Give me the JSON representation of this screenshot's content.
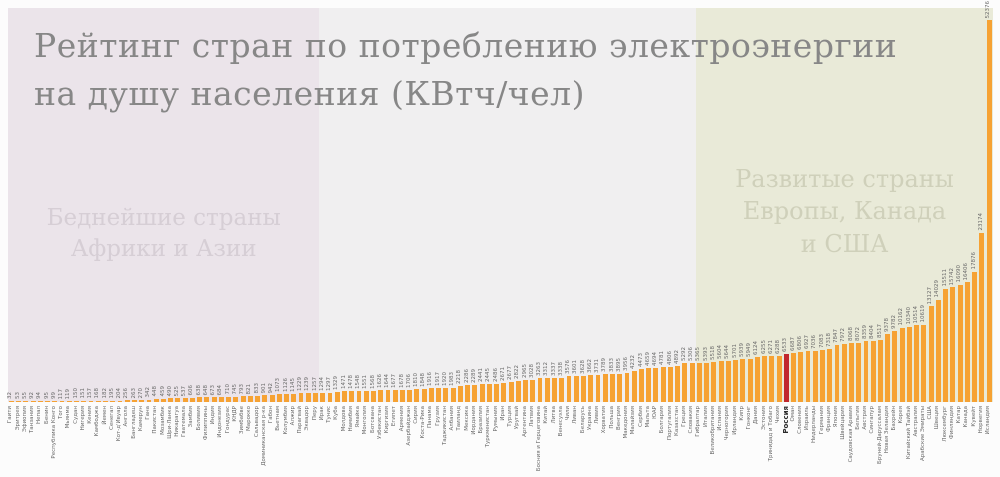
{
  "title": {
    "line1": "Рейтинг стран по потреблению электроэнергии",
    "line2": "на душу населения (КВтч/чел)"
  },
  "regions": [
    {
      "id": "poorest-africa-asia",
      "label_lines": [
        "Беднейшие страны",
        "Африки и Азии"
      ],
      "start_index": 0,
      "end_index": 42,
      "bg_color": "#ebe4ea",
      "label_color": "#d6ced5"
    },
    {
      "id": "developed-europe-canada-usa",
      "label_lines": [
        "Развитые страны",
        "Европы, Канада",
        "и США"
      ],
      "start_index": 95,
      "end_index": 135,
      "bg_color": "#e9ead8",
      "label_color": "#cfd0ba"
    }
  ],
  "highlight": {
    "country": "Россия",
    "value": 6533
  },
  "colors": {
    "bar": "#f6a233",
    "bar_highlight": "#c1272d",
    "value_label": "#6a6a6a",
    "name_label": "#6a6a6a",
    "panel_bg": "#f0eff0",
    "page_bg": "#fcfcfc",
    "title_color": "#878787"
  },
  "chart_data": {
    "type": "bar",
    "title": "Рейтинг стран по потреблению электроэнергии на душу населения (КВтч/чел)",
    "xlabel": "",
    "ylabel": "КВтч/чел",
    "ylim": [
      0,
      52376
    ],
    "sort": "ascending",
    "grid": false,
    "legend": "none",
    "categories": [
      "Гаити",
      "Эритрея",
      "Эфиопия",
      "Танзания",
      "Непал",
      "Бенин",
      "Республика Конго",
      "Того",
      "Мьянма",
      "Судан",
      "Нигерия",
      "Кения",
      "Камбоджа",
      "Йемен",
      "Сенегал",
      "Кот-д'Ивуар",
      "Ангола",
      "Бангладеш",
      "Камерун",
      "Гана",
      "Пакистан",
      "Мозамбик",
      "Шри-Ланка",
      "Никарагуа",
      "Гватемала",
      "Замбия",
      "Боливия",
      "Филиппины",
      "Индия",
      "Индонезия",
      "Гондурас",
      "КНДР",
      "Зимбабве",
      "Марокко",
      "Сальвадор",
      "Доминиканская р-ка",
      "Габон",
      "Вьетнам",
      "Колумбия",
      "Алжир",
      "Парагвай",
      "Эквадор",
      "Перу",
      "Ирак",
      "Тунис",
      "Куба",
      "Молдова",
      "Намибия",
      "Ямайка",
      "Монголия",
      "Ботсвана",
      "Узбекистан",
      "Киргизия",
      "Египет",
      "Армения",
      "Азербайджан",
      "Сирия",
      "Коста-Рика",
      "Панама",
      "Грузия",
      "Таджикистан",
      "Албания",
      "Таиланд",
      "Мексика",
      "Иордания",
      "Бразилия",
      "Туркменистан",
      "Румыния",
      "Иран",
      "Турция",
      "Уругвай",
      "Аргентина",
      "Латвия",
      "Босния и Герцеговина",
      "Китай",
      "Литва",
      "Венесуэла",
      "Чили",
      "Ливан",
      "Беларусь",
      "Украина",
      "Ливия",
      "Хорватия",
      "Польша",
      "Венгрия",
      "Македония",
      "Малайзия",
      "Сербия",
      "Мальта",
      "ЮАР",
      "Болгария",
      "Португалия",
      "Казахстан",
      "Греция",
      "Словакия",
      "Гибралтар",
      "Италия",
      "Великобритания",
      "Испания",
      "Черногория",
      "Ирландия",
      "Кипр",
      "Гонконг",
      "Дания",
      "Эстония",
      "Тринидад и Тобаго",
      "Чехия",
      "Россия",
      "Оман",
      "Словения",
      "Израиль",
      "Нидерланды",
      "Германия",
      "Франция",
      "Япония",
      "Швейцария",
      "Саудовская Аравия",
      "Бельгия",
      "Австрия",
      "Сингапур",
      "Бруней-Даруссалам",
      "Новая Зеландия",
      "Бахрейн",
      "Корея",
      "Китайский Тайбэй",
      "Австралия",
      "Арабские Эмираты",
      "США",
      "Швеция",
      "Люксембург",
      "Финляндия",
      "Катар",
      "Канада",
      "Кувейт",
      "Норвегия",
      "Исландия"
    ],
    "values": [
      32,
      53,
      55,
      92,
      94,
      95,
      99,
      117,
      119,
      150,
      151,
      157,
      168,
      182,
      195,
      204,
      256,
      263,
      270,
      342,
      448,
      459,
      490,
      525,
      537,
      606,
      638,
      648,
      673,
      684,
      710,
      745,
      793,
      821,
      833,
      901,
      942,
      1073,
      1126,
      1145,
      1229,
      1239,
      1257,
      1294,
      1297,
      1329,
      1471,
      1478,
      1548,
      1551,
      1568,
      1626,
      1644,
      1677,
      1678,
      1706,
      1810,
      1848,
      1916,
      1917,
      1920,
      1983,
      2218,
      2286,
      2289,
      2441,
      2445,
      2486,
      2671,
      2677,
      2822,
      2965,
      3028,
      3263,
      3312,
      3337,
      3338,
      3576,
      3601,
      3628,
      3662,
      3731,
      3789,
      3833,
      3895,
      3956,
      4232,
      4473,
      4659,
      4694,
      4781,
      4806,
      4892,
      5292,
      5306,
      5365,
      5393,
      5518,
      5604,
      5644,
      5701,
      5939,
      5949,
      6124,
      6255,
      6271,
      6288,
      6533,
      6687,
      6806,
      6927,
      7036,
      7083,
      7318,
      7847,
      7972,
      8068,
      8072,
      8359,
      8404,
      8517,
      9378,
      9782,
      10162,
      10340,
      10514,
      10619,
      13127,
      14029,
      15511,
      15742,
      16090,
      16406,
      17876,
      23174,
      52376
    ]
  }
}
